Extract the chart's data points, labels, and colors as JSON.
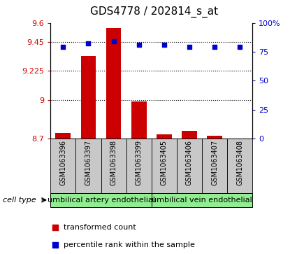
{
  "title": "GDS4778 / 202814_s_at",
  "samples": [
    "GSM1063396",
    "GSM1063397",
    "GSM1063398",
    "GSM1063399",
    "GSM1063405",
    "GSM1063406",
    "GSM1063407",
    "GSM1063408"
  ],
  "transformed_counts": [
    8.74,
    9.34,
    9.56,
    8.99,
    8.73,
    8.76,
    8.72,
    8.7
  ],
  "percentile_ranks": [
    79,
    82,
    84,
    81,
    81,
    79,
    79,
    79
  ],
  "ylim_left": [
    8.7,
    9.6
  ],
  "ylim_right": [
    0,
    100
  ],
  "yticks_left": [
    8.7,
    9.0,
    9.225,
    9.45,
    9.6
  ],
  "ytick_labels_left": [
    "8.7",
    "9",
    "9.225",
    "9.45",
    "9.6"
  ],
  "yticks_right": [
    0,
    25,
    50,
    75,
    100
  ],
  "ytick_labels_right": [
    "0",
    "25",
    "50",
    "75",
    "100%"
  ],
  "bar_color": "#cc0000",
  "dot_color": "#0000cc",
  "bar_width": 0.6,
  "cell_types": [
    {
      "label": "umbilical artery endothelial",
      "start": 0,
      "end": 3,
      "color": "#90ee90"
    },
    {
      "label": "umbilical vein endothelial",
      "start": 4,
      "end": 7,
      "color": "#90ee90"
    }
  ],
  "cell_type_label": "cell type",
  "legend_bar_label": "transformed count",
  "legend_dot_label": "percentile rank within the sample",
  "background_color": "#ffffff",
  "sample_box_color": "#c8c8c8",
  "title_fontsize": 11,
  "tick_fontsize": 8,
  "label_fontsize": 7,
  "celltype_fontsize": 8,
  "legend_fontsize": 8
}
